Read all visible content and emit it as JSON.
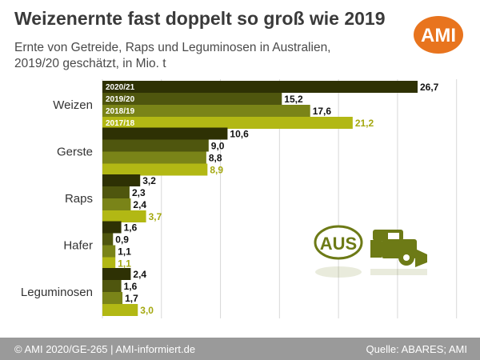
{
  "header": {
    "title": "Weizenernte fast doppelt so groß wie 2019",
    "subtitle_line1": "Ernte von Getreide, Raps und Leguminosen in Australien,",
    "subtitle_line2": "2019/20 geschätzt, in Mio. t",
    "logo_text": "AMI"
  },
  "badge": {
    "text": "AUS"
  },
  "footer": {
    "left": "© AMI 2020/GE-265 | AMI-informiert.de",
    "right": "Quelle: ABARES; AMI"
  },
  "colors": {
    "brand_orange": "#E8741E",
    "series": [
      "#2E3104",
      "#4F560E",
      "#7A8418",
      "#B2B814"
    ],
    "value_label_last_series": "#A4A80F",
    "grid": "#D8D8D8",
    "footer_bg": "#9A9A9A",
    "badge": "#6D7A16"
  },
  "icons": [
    "ami-logo-icon",
    "aus-badge-icon",
    "combine-harvester-icon"
  ],
  "chart_data": {
    "type": "bar",
    "orientation": "horizontal",
    "title": "Weizenernte fast doppelt so groß wie 2019",
    "subtitle": "Ernte von Getreide, Raps und Leguminosen in Australien, 2019/20 geschätzt, in Mio. t",
    "categories": [
      "Weizen",
      "Gerste",
      "Raps",
      "Hafer",
      "Leguminosen"
    ],
    "series": [
      {
        "name": "2020/21",
        "values": [
          26.7,
          10.6,
          3.2,
          1.6,
          2.4
        ],
        "labels": [
          "26,7",
          "10,6",
          "3,2",
          "1,6",
          "2,4"
        ]
      },
      {
        "name": "2019/20",
        "values": [
          15.2,
          9.0,
          2.3,
          0.9,
          1.6
        ],
        "labels": [
          "15,2",
          "9,0",
          "2,3",
          "0,9",
          "1,6"
        ]
      },
      {
        "name": "2018/19",
        "values": [
          17.6,
          8.8,
          2.4,
          1.1,
          1.7
        ],
        "labels": [
          "17,6",
          "8,8",
          "2,4",
          "1,1",
          "1,7"
        ]
      },
      {
        "name": "2017/18",
        "values": [
          21.2,
          8.9,
          3.7,
          1.1,
          3.0
        ],
        "labels": [
          "21,2",
          "8,9",
          "3,7",
          "1,1",
          "3,0"
        ]
      }
    ],
    "series_labels_inside_bars_for_category": "Weizen",
    "xlim": [
      0,
      30
    ],
    "grid": true,
    "legend": "inside first category bars"
  }
}
